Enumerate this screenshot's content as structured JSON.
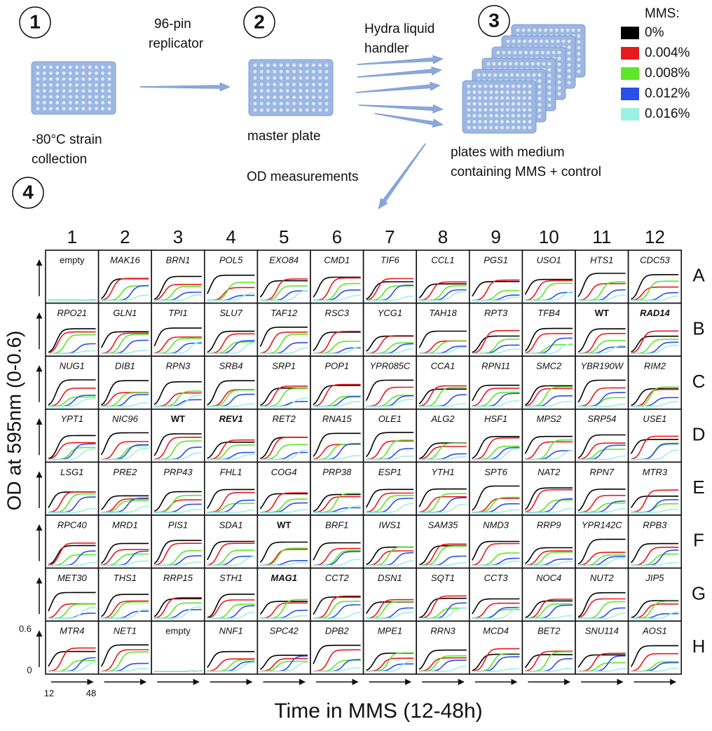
{
  "steps": [
    {
      "number": "1",
      "caption": [
        "-80°C strain",
        "collection"
      ]
    },
    {
      "number": "2",
      "caption": [
        "master plate"
      ]
    },
    {
      "number": "3",
      "caption": [
        "plates with medium",
        "containing MMS + control"
      ]
    },
    {
      "number": "4",
      "caption": [
        "OD measurements"
      ]
    }
  ],
  "transfers": [
    [
      "96-pin",
      "replicator"
    ],
    [
      "Hydra liquid",
      "handler"
    ]
  ],
  "legend": {
    "title": "MMS:",
    "items": [
      {
        "label": "0%",
        "color": "#000000"
      },
      {
        "label": "0.004%",
        "color": "#e8191e"
      },
      {
        "label": "0.008%",
        "color": "#5ee62a"
      },
      {
        "label": "0.012%",
        "color": "#2a4ee8"
      },
      {
        "label": "0.016%",
        "color": "#9ff0e4"
      }
    ]
  },
  "grid": {
    "columns": [
      "1",
      "2",
      "3",
      "4",
      "5",
      "6",
      "7",
      "8",
      "9",
      "10",
      "11",
      "12"
    ],
    "rows": [
      "A",
      "B",
      "C",
      "D",
      "E",
      "F",
      "G",
      "H"
    ],
    "wells": [
      [
        {
          "label": "empty",
          "style": "normal"
        },
        "MAK16",
        "BRN1",
        "POL5",
        "EXO84",
        "CMD1",
        "TIF6",
        "CCL1",
        "PGS1",
        "USO1",
        "HTS1",
        "CDC53"
      ],
      [
        "RPO21",
        "GLN1",
        "TPI1",
        "SLU7",
        "TAF12",
        "RSC3",
        "YCG1",
        "TAH18",
        "RPT3",
        "TFB4",
        {
          "label": "WT",
          "style": "bold"
        },
        {
          "label": "RAD14",
          "style": "bold-italic"
        }
      ],
      [
        "NUG1",
        "DIB1",
        "RPN3",
        "SRB4",
        "SRP1",
        "POP1",
        "YPR085C",
        "CCA1",
        "RPN11",
        "SMC2",
        "YBR190W",
        "RIM2"
      ],
      [
        "YPT1",
        "NIC96",
        {
          "label": "WT",
          "style": "bold"
        },
        {
          "label": "REV1",
          "style": "bold-italic"
        },
        "RET2",
        "RNA15",
        "OLE1",
        "ALG2",
        "HSF1",
        "MPS2",
        "SRP54",
        "USE1"
      ],
      [
        "LSG1",
        "PRE2",
        "PRP43",
        "FHL1",
        "COG4",
        "PRP38",
        "ESP1",
        "YTH1",
        "SPT6",
        "NAT2",
        "RPN7",
        "MTR3"
      ],
      [
        "RPC40",
        "MRD1",
        "PIS1",
        "SDA1",
        {
          "label": "WT",
          "style": "bold"
        },
        "BRF1",
        "IWS1",
        "SAM35",
        "NMD3",
        "RRP9",
        "YPR142C",
        "RPB3"
      ],
      [
        "MET30",
        "THS1",
        "RRP15",
        "STH1",
        {
          "label": "MAG1",
          "style": "bold-italic"
        },
        "CCT2",
        "DSN1",
        "SQT1",
        "CCT3",
        "NOC4",
        "NUT2",
        "JIP5"
      ],
      [
        "MTR4",
        "NET1",
        {
          "label": "empty",
          "style": "normal"
        },
        "NNF1",
        "SPC42",
        "DPB2",
        "MPE1",
        "RRN3",
        "MCD4",
        "BET2",
        "SNU114",
        "AOS1"
      ]
    ],
    "y_label": "OD at 595nm (0-0.6)",
    "y_ticks": [
      "0.6",
      "0"
    ],
    "x_ticks": [
      "12",
      "48"
    ],
    "x_label": "Time in MMS (12-48h)"
  }
}
